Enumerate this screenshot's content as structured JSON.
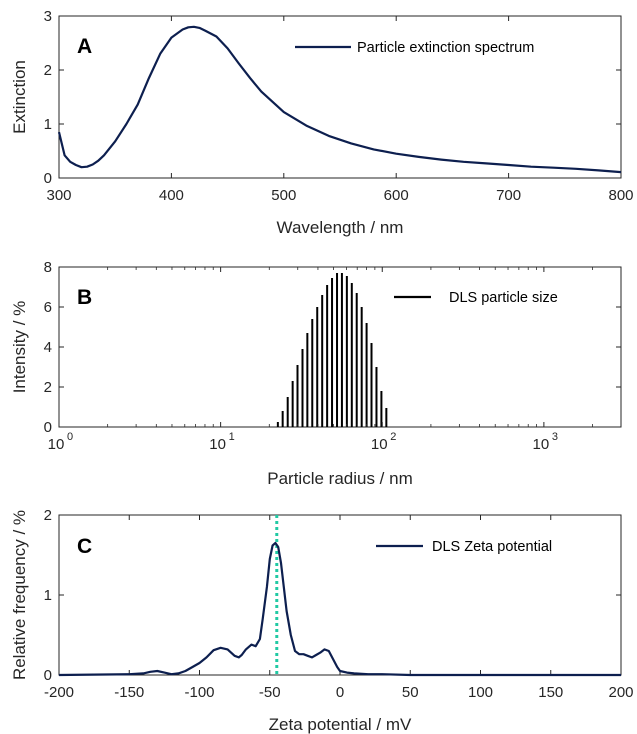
{
  "colors": {
    "curve": "#0d1f4f",
    "bars": "#000000",
    "marker": "#21c9a4",
    "axis": "#262626"
  },
  "chart_data": [
    {
      "panel": "A",
      "type": "line",
      "xlabel": "Wavelength / nm",
      "ylabel": "Extinction",
      "xlim": [
        300,
        800
      ],
      "ylim": [
        0,
        3
      ],
      "xticks": [
        300,
        400,
        500,
        600,
        700,
        800
      ],
      "yticks": [
        0,
        1,
        2,
        3
      ],
      "legend": "top-right",
      "series": [
        {
          "name": "Particle extinction spectrum",
          "x": [
            300,
            305,
            310,
            315,
            320,
            325,
            330,
            335,
            340,
            350,
            360,
            370,
            380,
            390,
            400,
            410,
            415,
            420,
            425,
            430,
            440,
            450,
            460,
            470,
            480,
            500,
            520,
            540,
            560,
            580,
            600,
            620,
            640,
            660,
            680,
            700,
            720,
            740,
            760,
            780,
            800
          ],
          "y": [
            0.85,
            0.42,
            0.3,
            0.24,
            0.2,
            0.21,
            0.25,
            0.32,
            0.42,
            0.68,
            1.0,
            1.36,
            1.85,
            2.3,
            2.6,
            2.75,
            2.79,
            2.8,
            2.78,
            2.73,
            2.62,
            2.4,
            2.12,
            1.85,
            1.6,
            1.22,
            0.97,
            0.78,
            0.64,
            0.53,
            0.45,
            0.39,
            0.34,
            0.3,
            0.27,
            0.24,
            0.21,
            0.19,
            0.17,
            0.14,
            0.11
          ]
        }
      ]
    },
    {
      "panel": "B",
      "type": "bar",
      "xscale": "log",
      "xlabel": "Particle radius / nm",
      "ylabel": "Intensity / %",
      "xlim": [
        1,
        3000
      ],
      "ylim": [
        0,
        8
      ],
      "xticks": [
        1,
        10,
        100,
        1000
      ],
      "xtick_labels": [
        "10",
        "10",
        "10",
        "10"
      ],
      "xtick_exponents": [
        "0",
        "1",
        "2",
        "3"
      ],
      "yticks": [
        0,
        2,
        4,
        6,
        8
      ],
      "legend": "top-right",
      "series": [
        {
          "name": "DLS particle size",
          "x": [
            22.6,
            24.2,
            26.0,
            27.9,
            29.9,
            32.1,
            34.4,
            36.9,
            39.6,
            42.5,
            45.6,
            48.9,
            52.5,
            56.3,
            60.4,
            64.8,
            69.5,
            74.6,
            80.0,
            85.8,
            92.1,
            98.8,
            106.0
          ],
          "y": [
            0.25,
            0.8,
            1.5,
            2.3,
            3.1,
            3.9,
            4.7,
            5.4,
            6.0,
            6.6,
            7.1,
            7.45,
            7.7,
            7.7,
            7.55,
            7.2,
            6.7,
            6.0,
            5.2,
            4.2,
            3.0,
            1.8,
            0.95
          ]
        }
      ]
    },
    {
      "panel": "C",
      "type": "line",
      "xlabel": "Zeta potential / mV",
      "ylabel": "Relative frequency / %",
      "xlim": [
        -200,
        200
      ],
      "ylim": [
        0,
        2
      ],
      "xticks": [
        -200,
        -150,
        -100,
        -50,
        0,
        50,
        100,
        150,
        200
      ],
      "yticks": [
        0,
        1,
        2
      ],
      "legend": "top-right",
      "vline_x": -45,
      "series": [
        {
          "name": "DLS Zeta potential",
          "x": [
            -200,
            -150,
            -140,
            -135,
            -130,
            -125,
            -120,
            -115,
            -110,
            -105,
            -100,
            -95,
            -90,
            -85,
            -80,
            -75,
            -72,
            -70,
            -67,
            -63,
            -60,
            -57,
            -55,
            -52,
            -50,
            -48,
            -46,
            -44,
            -42,
            -40,
            -38,
            -35,
            -32,
            -29,
            -26,
            -23,
            -20,
            -17,
            -14,
            -11,
            -8,
            -5,
            -2,
            0,
            5,
            10,
            20,
            30,
            50,
            100,
            150,
            200
          ],
          "y": [
            0,
            0.01,
            0.02,
            0.04,
            0.05,
            0.03,
            0.01,
            0.02,
            0.05,
            0.1,
            0.15,
            0.22,
            0.31,
            0.34,
            0.32,
            0.24,
            0.22,
            0.25,
            0.32,
            0.38,
            0.36,
            0.45,
            0.7,
            1.1,
            1.45,
            1.62,
            1.65,
            1.6,
            1.4,
            1.1,
            0.8,
            0.5,
            0.3,
            0.26,
            0.26,
            0.24,
            0.22,
            0.25,
            0.28,
            0.32,
            0.3,
            0.2,
            0.1,
            0.05,
            0.03,
            0.02,
            0.01,
            0.01,
            0.0,
            0.0,
            0.0,
            0.0
          ]
        }
      ]
    }
  ]
}
